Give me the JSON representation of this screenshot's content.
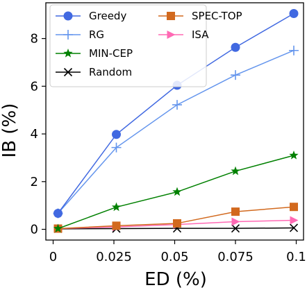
{
  "chart_data": {
    "type": "line",
    "xlabel": "ED (%)",
    "ylabel": "IB (%)",
    "xlim": [
      -0.003,
      0.103
    ],
    "ylim": [
      -0.45,
      9.5
    ],
    "xticks": [
      0,
      0.025,
      0.05,
      0.075,
      0.1
    ],
    "xtick_labels": [
      "0",
      "0.025",
      "0.05",
      "0.075",
      "0.1"
    ],
    "yticks": [
      0,
      2,
      4,
      6,
      8
    ],
    "ytick_labels": [
      "0",
      "2",
      "4",
      "6",
      "8"
    ],
    "grid": false,
    "legend_placement": "top-left",
    "legend_columns": 2,
    "x": [
      0.002,
      0.026,
      0.051,
      0.075,
      0.099
    ],
    "series": [
      {
        "name": "Greedy",
        "color": "#4169e1",
        "marker": "circle",
        "values": [
          0.67,
          3.98,
          6.04,
          7.63,
          9.05
        ]
      },
      {
        "name": "RG",
        "color": "#6495ed",
        "marker": "plus",
        "values": [
          0.67,
          3.43,
          5.22,
          6.47,
          7.5
        ]
      },
      {
        "name": "MIN-CEP",
        "color": "#008000",
        "marker": "star",
        "values": [
          0.03,
          0.93,
          1.57,
          2.44,
          3.1
        ]
      },
      {
        "name": "Random",
        "color": "#000000",
        "marker": "x",
        "values": [
          0.02,
          0.03,
          0.04,
          0.04,
          0.06
        ]
      },
      {
        "name": "SPEC-TOP",
        "color": "#d2691e",
        "marker": "square",
        "values": [
          0.03,
          0.15,
          0.25,
          0.74,
          0.94
        ]
      },
      {
        "name": "ISA",
        "color": "#ff69b4",
        "marker": "triangle-right",
        "values": [
          0.03,
          0.1,
          0.2,
          0.32,
          0.38
        ]
      }
    ]
  }
}
